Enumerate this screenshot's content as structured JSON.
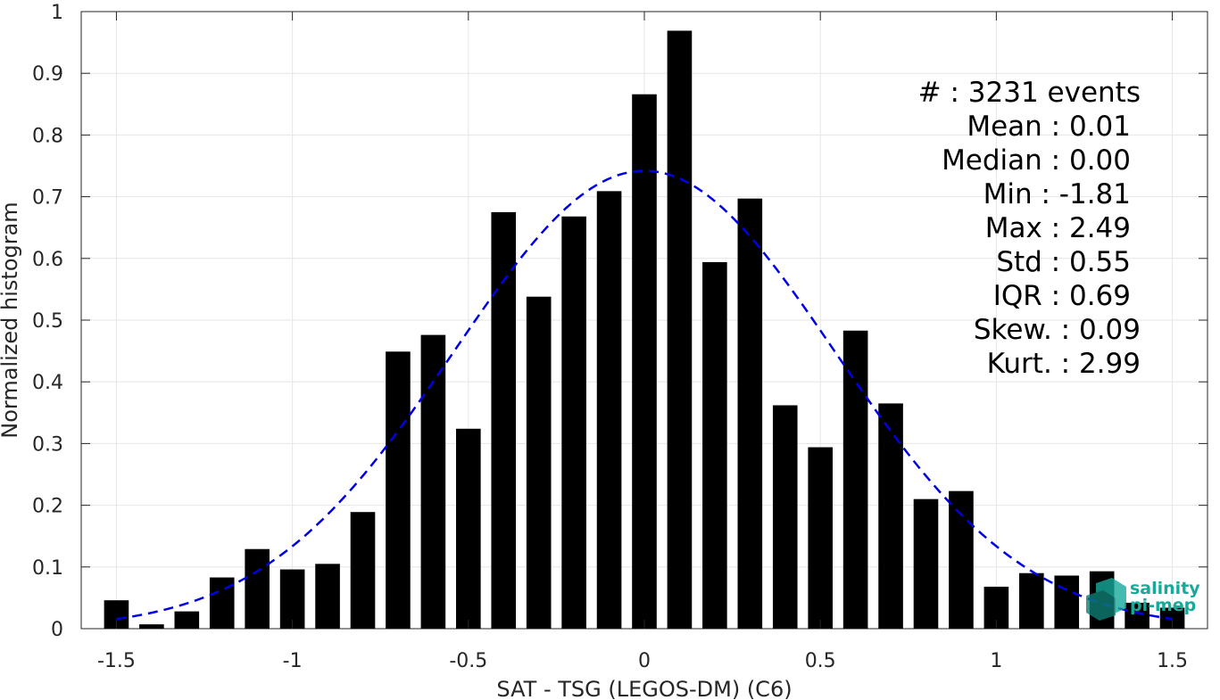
{
  "chart_data": {
    "type": "bar",
    "xlabel": "SAT - TSG (LEGOS-DM) (C6)",
    "ylabel": "Normalized histogram",
    "xlim": [
      -1.6,
      1.6
    ],
    "ylim": [
      0,
      1
    ],
    "xticks": [
      -1.5,
      -1,
      -0.5,
      0,
      0.5,
      1,
      1.5
    ],
    "xtick_labels": [
      "-1.5",
      "-1",
      "-0.5",
      "0",
      "0.5",
      "1",
      "1.5"
    ],
    "yticks": [
      0,
      0.1,
      0.2,
      0.3,
      0.4,
      0.5,
      0.6,
      0.7,
      0.8,
      0.9,
      1
    ],
    "ytick_labels": [
      "0",
      "0.1",
      "0.2",
      "0.3",
      "0.4",
      "0.5",
      "0.6",
      "0.7",
      "0.8",
      "0.9",
      "1"
    ],
    "grid": true,
    "bar_color": "#000000",
    "bar_width": 0.07,
    "x": [
      -1.5,
      -1.4,
      -1.3,
      -1.2,
      -1.1,
      -1.0,
      -0.9,
      -0.8,
      -0.7,
      -0.6,
      -0.5,
      -0.4,
      -0.3,
      -0.2,
      -0.1,
      0.0,
      0.1,
      0.2,
      0.3,
      0.4,
      0.5,
      0.6,
      0.7,
      0.8,
      0.9,
      1.0,
      1.1,
      1.2,
      1.3,
      1.4,
      1.5
    ],
    "values": [
      0.046,
      0.007,
      0.028,
      0.083,
      0.129,
      0.096,
      0.105,
      0.189,
      0.449,
      0.476,
      0.324,
      0.675,
      0.538,
      0.668,
      0.709,
      0.866,
      0.969,
      0.594,
      0.697,
      0.362,
      0.294,
      0.483,
      0.365,
      0.21,
      0.223,
      0.068,
      0.09,
      0.086,
      0.093,
      0.042,
      0.034
    ],
    "fit_curve": {
      "color": "#0000e6",
      "style": "dashed",
      "mean": 0.0,
      "peak": 0.742,
      "std": 0.54,
      "x_range": [
        -1.5,
        1.5
      ]
    },
    "annotations": [
      "#  : 3231 events",
      "Mean : 0.01",
      "Median : 0.00",
      "Min : -1.81",
      "Max : 2.49",
      "Std : 0.55",
      "IQR : 0.69",
      "Skew. : 0.09",
      "Kurt. : 2.99"
    ]
  },
  "logo": {
    "line1": "salinity",
    "line2": "pi-mep",
    "color": "#17a99a"
  }
}
